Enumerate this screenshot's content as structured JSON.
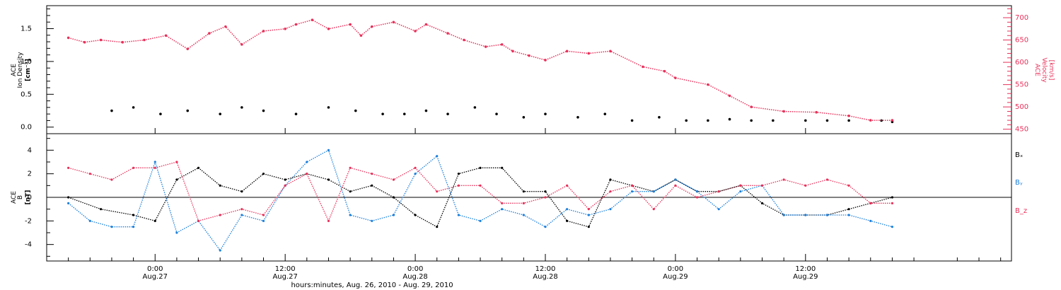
{
  "colors": {
    "density": "#000000",
    "velocity": "#e8305a",
    "bx": "#000000",
    "by": "#1a7fdc",
    "bz": "#e8305a",
    "axis": "#000000"
  },
  "chart_data": [
    {
      "type": "scatter",
      "ylabel_lines": [
        "ACE",
        "Ion Density",
        "[cm⁻³]"
      ],
      "y2label_lines": [
        "ACE",
        "Velocity",
        "[km/s]"
      ],
      "ylim": [
        -0.1,
        1.85
      ],
      "y2lim": [
        440,
        727
      ],
      "yticks": [
        "0.0",
        "0.5",
        "1.0",
        "1.5"
      ],
      "y2ticks": [
        "450",
        "500",
        "550",
        "600",
        "650",
        "700"
      ],
      "series": [
        {
          "axis": "left",
          "x": [
            -4.0,
            -2.0,
            0.5,
            3.0,
            6.0,
            8.0,
            10.0,
            13.0,
            16.0,
            18.5,
            21.0,
            23.0,
            25.0,
            27.0,
            29.5,
            31.5,
            34.0,
            36.0,
            39.0,
            41.5,
            44.0,
            46.5,
            49.0,
            51.0,
            53.0,
            55.0,
            57.0,
            60.0,
            62.0,
            64.0,
            67.0,
            68.0
          ],
          "values": [
            0.25,
            0.3,
            0.2,
            0.25,
            0.2,
            0.3,
            0.25,
            0.2,
            0.3,
            0.25,
            0.2,
            0.2,
            0.25,
            0.2,
            0.3,
            0.2,
            0.15,
            0.2,
            0.15,
            0.2,
            0.1,
            0.15,
            0.1,
            0.1,
            0.12,
            0.1,
            0.1,
            0.1,
            0.1,
            0.1,
            0.1,
            0.08
          ]
        },
        {
          "axis": "right",
          "x": [
            -8.0,
            -6.5,
            -5.0,
            -3.0,
            -1.0,
            1.0,
            3.0,
            5.0,
            6.5,
            8.0,
            10.0,
            12.0,
            13.0,
            14.5,
            16.0,
            18.0,
            19.0,
            20.0,
            22.0,
            24.0,
            25.0,
            27.0,
            28.5,
            30.5,
            32.0,
            33.0,
            34.5,
            36.0,
            38.0,
            40.0,
            42.0,
            45.0,
            47.0,
            48.0,
            51.0,
            53.0,
            55.0,
            58.0,
            61.0,
            64.0,
            66.0,
            68.0
          ],
          "values": [
            655,
            645,
            650,
            645,
            650,
            660,
            630,
            665,
            680,
            640,
            670,
            675,
            685,
            695,
            675,
            685,
            660,
            680,
            690,
            670,
            685,
            665,
            650,
            635,
            640,
            625,
            615,
            605,
            625,
            620,
            625,
            590,
            580,
            565,
            550,
            525,
            500,
            490,
            488,
            480,
            470,
            470
          ]
        }
      ]
    },
    {
      "type": "scatter",
      "ylabel_lines": [
        "ACE",
        "B",
        "[nT]"
      ],
      "ylim": [
        -5.4,
        5.4
      ],
      "yticks": [
        "-4",
        "-2",
        "0",
        "2",
        "4"
      ],
      "legend": [
        "Bₓ",
        "Bᵧ",
        "B_z"
      ],
      "series": [
        {
          "name": "Bₓ",
          "x": [
            -8.0,
            -5.0,
            -2.0,
            0.0,
            2.0,
            4.0,
            6.0,
            8.0,
            10.0,
            12.0,
            14.0,
            16.0,
            18.0,
            20.0,
            22.0,
            24.0,
            26.0,
            28.0,
            30.0,
            32.0,
            34.0,
            36.0,
            38.0,
            40.0,
            42.0,
            44.0,
            46.0,
            48.0,
            50.0,
            52.0,
            54.0,
            56.0,
            58.0,
            60.0,
            62.0,
            64.0,
            66.0,
            68.0
          ],
          "values": [
            0.0,
            -1.0,
            -1.5,
            -2.0,
            1.5,
            2.5,
            1.0,
            0.5,
            2.0,
            1.5,
            2.0,
            1.5,
            0.5,
            1.0,
            0.0,
            -1.5,
            -2.5,
            2.0,
            2.5,
            2.5,
            0.5,
            0.5,
            -2.0,
            -2.5,
            1.5,
            1.0,
            0.5,
            1.5,
            0.5,
            0.5,
            1.0,
            -0.5,
            -1.5,
            -1.5,
            -1.5,
            -1.0,
            -0.5,
            0.0
          ]
        },
        {
          "name": "Bᵧ",
          "x": [
            -8.0,
            -6.0,
            -4.0,
            -2.0,
            0.0,
            2.0,
            4.0,
            6.0,
            8.0,
            10.0,
            12.0,
            14.0,
            16.0,
            18.0,
            20.0,
            22.0,
            24.0,
            26.0,
            28.0,
            30.0,
            32.0,
            34.0,
            36.0,
            38.0,
            40.0,
            42.0,
            44.0,
            46.0,
            48.0,
            50.0,
            52.0,
            54.0,
            56.0,
            58.0,
            60.0,
            62.0,
            64.0,
            66.0,
            68.0
          ],
          "values": [
            -0.5,
            -2.0,
            -2.5,
            -2.5,
            3.0,
            -3.0,
            -2.0,
            -4.5,
            -1.5,
            -2.0,
            1.0,
            3.0,
            4.0,
            -1.5,
            -2.0,
            -1.5,
            2.0,
            3.5,
            -1.5,
            -2.0,
            -1.0,
            -1.5,
            -2.5,
            -1.0,
            -1.5,
            -1.0,
            0.5,
            0.5,
            1.5,
            0.5,
            -1.0,
            0.5,
            1.0,
            -1.5,
            -1.5,
            -1.5,
            -1.5,
            -2.0,
            -2.5
          ]
        },
        {
          "name": "B_z",
          "x": [
            -8.0,
            -6.0,
            -4.0,
            -2.0,
            0.0,
            2.0,
            4.0,
            6.0,
            8.0,
            10.0,
            12.0,
            14.0,
            16.0,
            18.0,
            20.0,
            22.0,
            24.0,
            26.0,
            28.0,
            30.0,
            32.0,
            34.0,
            36.0,
            38.0,
            40.0,
            42.0,
            44.0,
            46.0,
            48.0,
            50.0,
            52.0,
            54.0,
            56.0,
            58.0,
            60.0,
            62.0,
            64.0,
            66.0,
            68.0
          ],
          "values": [
            2.5,
            2.0,
            1.5,
            2.5,
            2.5,
            3.0,
            -2.0,
            -1.5,
            -1.0,
            -1.5,
            1.0,
            2.0,
            -2.0,
            2.5,
            2.0,
            1.5,
            2.5,
            0.5,
            1.0,
            1.0,
            -0.5,
            -0.5,
            0.0,
            1.0,
            -1.0,
            0.5,
            1.0,
            -1.0,
            1.0,
            0.0,
            0.5,
            1.0,
            1.0,
            1.5,
            1.0,
            1.5,
            1.0,
            -0.5,
            -0.5
          ]
        }
      ]
    }
  ],
  "xaxis": {
    "xlim": [
      -10.0,
      79.0
    ],
    "unit": "hours from 2010-08-27 00:00",
    "ticks": [
      {
        "x": 0,
        "time": "0:00",
        "date": "Aug.27"
      },
      {
        "x": 12,
        "time": "12:00",
        "date": "Aug.27"
      },
      {
        "x": 24,
        "time": "0:00",
        "date": "Aug.28"
      },
      {
        "x": 36,
        "time": "12:00",
        "date": "Aug.28"
      },
      {
        "x": 48,
        "time": "0:00",
        "date": "Aug.29"
      },
      {
        "x": 60,
        "time": "12:00",
        "date": "Aug.29"
      }
    ],
    "label": "hours:minutes, Aug. 26, 2010 - Aug. 29, 2010"
  }
}
